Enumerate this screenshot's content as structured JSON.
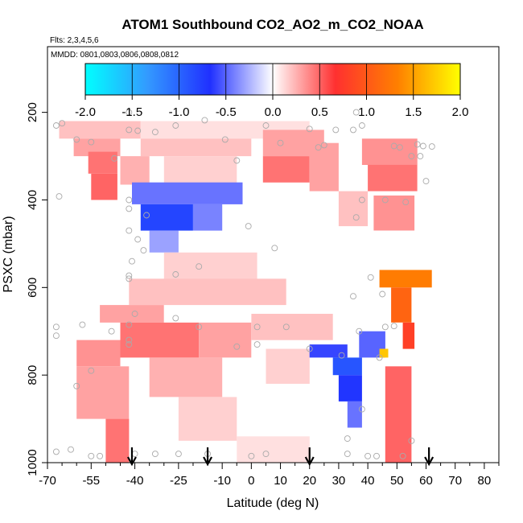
{
  "chart_data": {
    "type": "heatmap",
    "title": "ATOM1 Southbound CO2_AO2_m_CO2_NOAA",
    "notes": [
      "Flts: 2,3,4,5,6",
      "MMDD: 0801,0803,0806,0808,0812"
    ],
    "xlabel": "Latitude (deg N)",
    "ylabel": "PSXC (mbar)",
    "xlim": [
      -70,
      85
    ],
    "ylim": [
      1000,
      50
    ],
    "x_ticks": [
      -70,
      -55,
      -40,
      -25,
      -10,
      0,
      10,
      20,
      30,
      40,
      50,
      60,
      70,
      80
    ],
    "x_minor_ticks": [
      -65,
      -60,
      -50,
      -45,
      -35,
      -30,
      -20,
      -15,
      -5,
      5,
      15,
      25,
      35,
      45,
      55,
      65,
      75,
      85
    ],
    "y_ticks": [
      200,
      400,
      600,
      800,
      1000
    ],
    "colorbar": {
      "range": [
        -2.0,
        2.0
      ],
      "ticks": [
        "-2.0",
        "-1.5",
        "-1.0",
        "-0.5",
        "0.0",
        "0.5",
        "1.0",
        "1.5",
        "2.0"
      ],
      "colors": [
        "#00ffff",
        "#3399ff",
        "#2030ff",
        "#ffffff",
        "#ff3030",
        "#ff8000",
        "#ffff00"
      ]
    },
    "arrows_latitude": [
      -41,
      -15,
      20,
      61
    ],
    "cells": [
      {
        "lat": [
          -66,
          -38
        ],
        "p": [
          220,
          260
        ],
        "value": 0.2
      },
      {
        "lat": [
          -61,
          -45
        ],
        "p": [
          260,
          300
        ],
        "value": 0.3
      },
      {
        "lat": [
          -56,
          -46
        ],
        "p": [
          290,
          340
        ],
        "value": 0.45
      },
      {
        "lat": [
          -55,
          -46
        ],
        "p": [
          340,
          400
        ],
        "value": 0.5
      },
      {
        "lat": [
          -38,
          20
        ],
        "p": [
          220,
          260
        ],
        "value": 0.1
      },
      {
        "lat": [
          -38,
          0
        ],
        "p": [
          260,
          300
        ],
        "value": 0.2
      },
      {
        "lat": [
          -45,
          -35
        ],
        "p": [
          300,
          365
        ],
        "value": 0.25
      },
      {
        "lat": [
          -30,
          -5
        ],
        "p": [
          300,
          365
        ],
        "value": 0.15
      },
      {
        "lat": [
          4,
          25
        ],
        "p": [
          240,
          300
        ],
        "value": 0.3
      },
      {
        "lat": [
          4,
          20
        ],
        "p": [
          300,
          360
        ],
        "value": 0.45
      },
      {
        "lat": [
          20,
          30
        ],
        "p": [
          270,
          380
        ],
        "value": 0.3
      },
      {
        "lat": [
          38,
          57
        ],
        "p": [
          260,
          320
        ],
        "value": 0.35
      },
      {
        "lat": [
          40,
          57
        ],
        "p": [
          320,
          380
        ],
        "value": 0.45
      },
      {
        "lat": [
          30,
          40
        ],
        "p": [
          380,
          460
        ],
        "value": 0.2
      },
      {
        "lat": [
          42,
          56
        ],
        "p": [
          390,
          470
        ],
        "value": 0.35
      },
      {
        "lat": [
          -41,
          -3
        ],
        "p": [
          360,
          410
        ],
        "value": -0.45
      },
      {
        "lat": [
          -38,
          -20
        ],
        "p": [
          410,
          470
        ],
        "value": -0.8
      },
      {
        "lat": [
          -20,
          -10
        ],
        "p": [
          410,
          470
        ],
        "value": -0.4
      },
      {
        "lat": [
          -35,
          -25
        ],
        "p": [
          470,
          520
        ],
        "value": -0.3
      },
      {
        "lat": [
          -30,
          2
        ],
        "p": [
          520,
          580
        ],
        "value": 0.15
      },
      {
        "lat": [
          -42,
          12
        ],
        "p": [
          580,
          640
        ],
        "value": 0.2
      },
      {
        "lat": [
          -52,
          -30
        ],
        "p": [
          640,
          680
        ],
        "value": 0.3
      },
      {
        "lat": [
          -45,
          -18
        ],
        "p": [
          680,
          760
        ],
        "value": 0.45
      },
      {
        "lat": [
          -18,
          0
        ],
        "p": [
          680,
          760
        ],
        "value": 0.3
      },
      {
        "lat": [
          0,
          28
        ],
        "p": [
          660,
          720
        ],
        "value": 0.2
      },
      {
        "lat": [
          -60,
          -45
        ],
        "p": [
          720,
          780
        ],
        "value": 0.35
      },
      {
        "lat": [
          -60,
          -42
        ],
        "p": [
          780,
          900
        ],
        "value": 0.3
      },
      {
        "lat": [
          -50,
          -42
        ],
        "p": [
          900,
          1000
        ],
        "value": 0.45
      },
      {
        "lat": [
          -35,
          -10
        ],
        "p": [
          760,
          850
        ],
        "value": 0.25
      },
      {
        "lat": [
          -25,
          -5
        ],
        "p": [
          850,
          950
        ],
        "value": 0.15
      },
      {
        "lat": [
          5,
          20
        ],
        "p": [
          740,
          820
        ],
        "value": 0.15
      },
      {
        "lat": [
          20,
          33
        ],
        "p": [
          730,
          760
        ],
        "value": -0.6
      },
      {
        "lat": [
          28,
          38
        ],
        "p": [
          760,
          800
        ],
        "value": -0.9
      },
      {
        "lat": [
          30,
          38
        ],
        "p": [
          800,
          860
        ],
        "value": -0.7
      },
      {
        "lat": [
          33,
          38
        ],
        "p": [
          860,
          920
        ],
        "value": -0.45
      },
      {
        "lat": [
          46,
          55
        ],
        "p": [
          780,
          1000
        ],
        "value": 0.5
      },
      {
        "lat": [
          37,
          46
        ],
        "p": [
          700,
          760
        ],
        "value": -0.5
      },
      {
        "lat": [
          44,
          62
        ],
        "p": [
          560,
          600
        ],
        "value": 1.3
      },
      {
        "lat": [
          48,
          55
        ],
        "p": [
          600,
          680
        ],
        "value": 1.1
      },
      {
        "lat": [
          52,
          56
        ],
        "p": [
          680,
          740
        ],
        "value": 0.8
      },
      {
        "lat": [
          44,
          47
        ],
        "p": [
          740,
          760
        ],
        "value": 1.7
      },
      {
        "lat": [
          -5,
          20
        ],
        "p": [
          940,
          1000
        ],
        "value": 0.1
      }
    ],
    "sample_points": [
      [
        -67,
        230
      ],
      [
        -65,
        225
      ],
      [
        -60,
        262
      ],
      [
        -55,
        268
      ],
      [
        -66,
        392
      ],
      [
        -42,
        200
      ],
      [
        -42,
        240
      ],
      [
        -39,
        242
      ],
      [
        -33,
        245
      ],
      [
        -26,
        230
      ],
      [
        -16,
        218
      ],
      [
        -9,
        262
      ],
      [
        -5,
        310
      ],
      [
        5,
        230
      ],
      [
        10,
        270
      ],
      [
        20,
        238
      ],
      [
        29,
        240
      ],
      [
        35,
        240
      ],
      [
        38,
        230
      ],
      [
        36,
        200
      ],
      [
        25,
        275
      ],
      [
        23,
        280
      ],
      [
        49,
        277
      ],
      [
        51,
        280
      ],
      [
        57,
        273
      ],
      [
        59,
        277
      ],
      [
        62,
        278
      ],
      [
        58,
        300
      ],
      [
        55,
        300
      ],
      [
        -47,
        305
      ],
      [
        -42,
        400
      ],
      [
        -42,
        420
      ],
      [
        -36,
        435
      ],
      [
        -42,
        470
      ],
      [
        -39,
        490
      ],
      [
        -37,
        515
      ],
      [
        -41,
        540
      ],
      [
        -42,
        573
      ],
      [
        -42,
        580
      ],
      [
        -18,
        552
      ],
      [
        -26,
        570
      ],
      [
        8,
        510
      ],
      [
        -1,
        460
      ],
      [
        36,
        440
      ],
      [
        38,
        400
      ],
      [
        46,
        400
      ],
      [
        53,
        405
      ],
      [
        60,
        357
      ],
      [
        41,
        577
      ],
      [
        35,
        620
      ],
      [
        -67,
        690
      ],
      [
        -67,
        710
      ],
      [
        -58,
        685
      ],
      [
        -48,
        700
      ],
      [
        -40,
        660
      ],
      [
        -42,
        685
      ],
      [
        -42,
        720
      ],
      [
        -42,
        730
      ],
      [
        -55,
        790
      ],
      [
        -26,
        670
      ],
      [
        -18,
        690
      ],
      [
        2,
        690
      ],
      [
        12,
        690
      ],
      [
        -5,
        735
      ],
      [
        2,
        730
      ],
      [
        20,
        740
      ],
      [
        37,
        700
      ],
      [
        46,
        690
      ],
      [
        49,
        688
      ],
      [
        45,
        615
      ],
      [
        31,
        755
      ],
      [
        44,
        760
      ],
      [
        -60,
        825
      ],
      [
        -55,
        985
      ],
      [
        -52,
        985
      ],
      [
        -40,
        980
      ],
      [
        -33,
        980
      ],
      [
        -25,
        980
      ],
      [
        -15,
        980
      ],
      [
        0,
        985
      ],
      [
        5,
        980
      ],
      [
        33,
        980
      ],
      [
        40,
        985
      ],
      [
        43,
        985
      ],
      [
        52,
        985
      ],
      [
        55,
        950
      ],
      [
        38,
        878
      ],
      [
        33,
        945
      ],
      [
        -62,
        970
      ],
      [
        -67,
        975
      ]
    ]
  }
}
